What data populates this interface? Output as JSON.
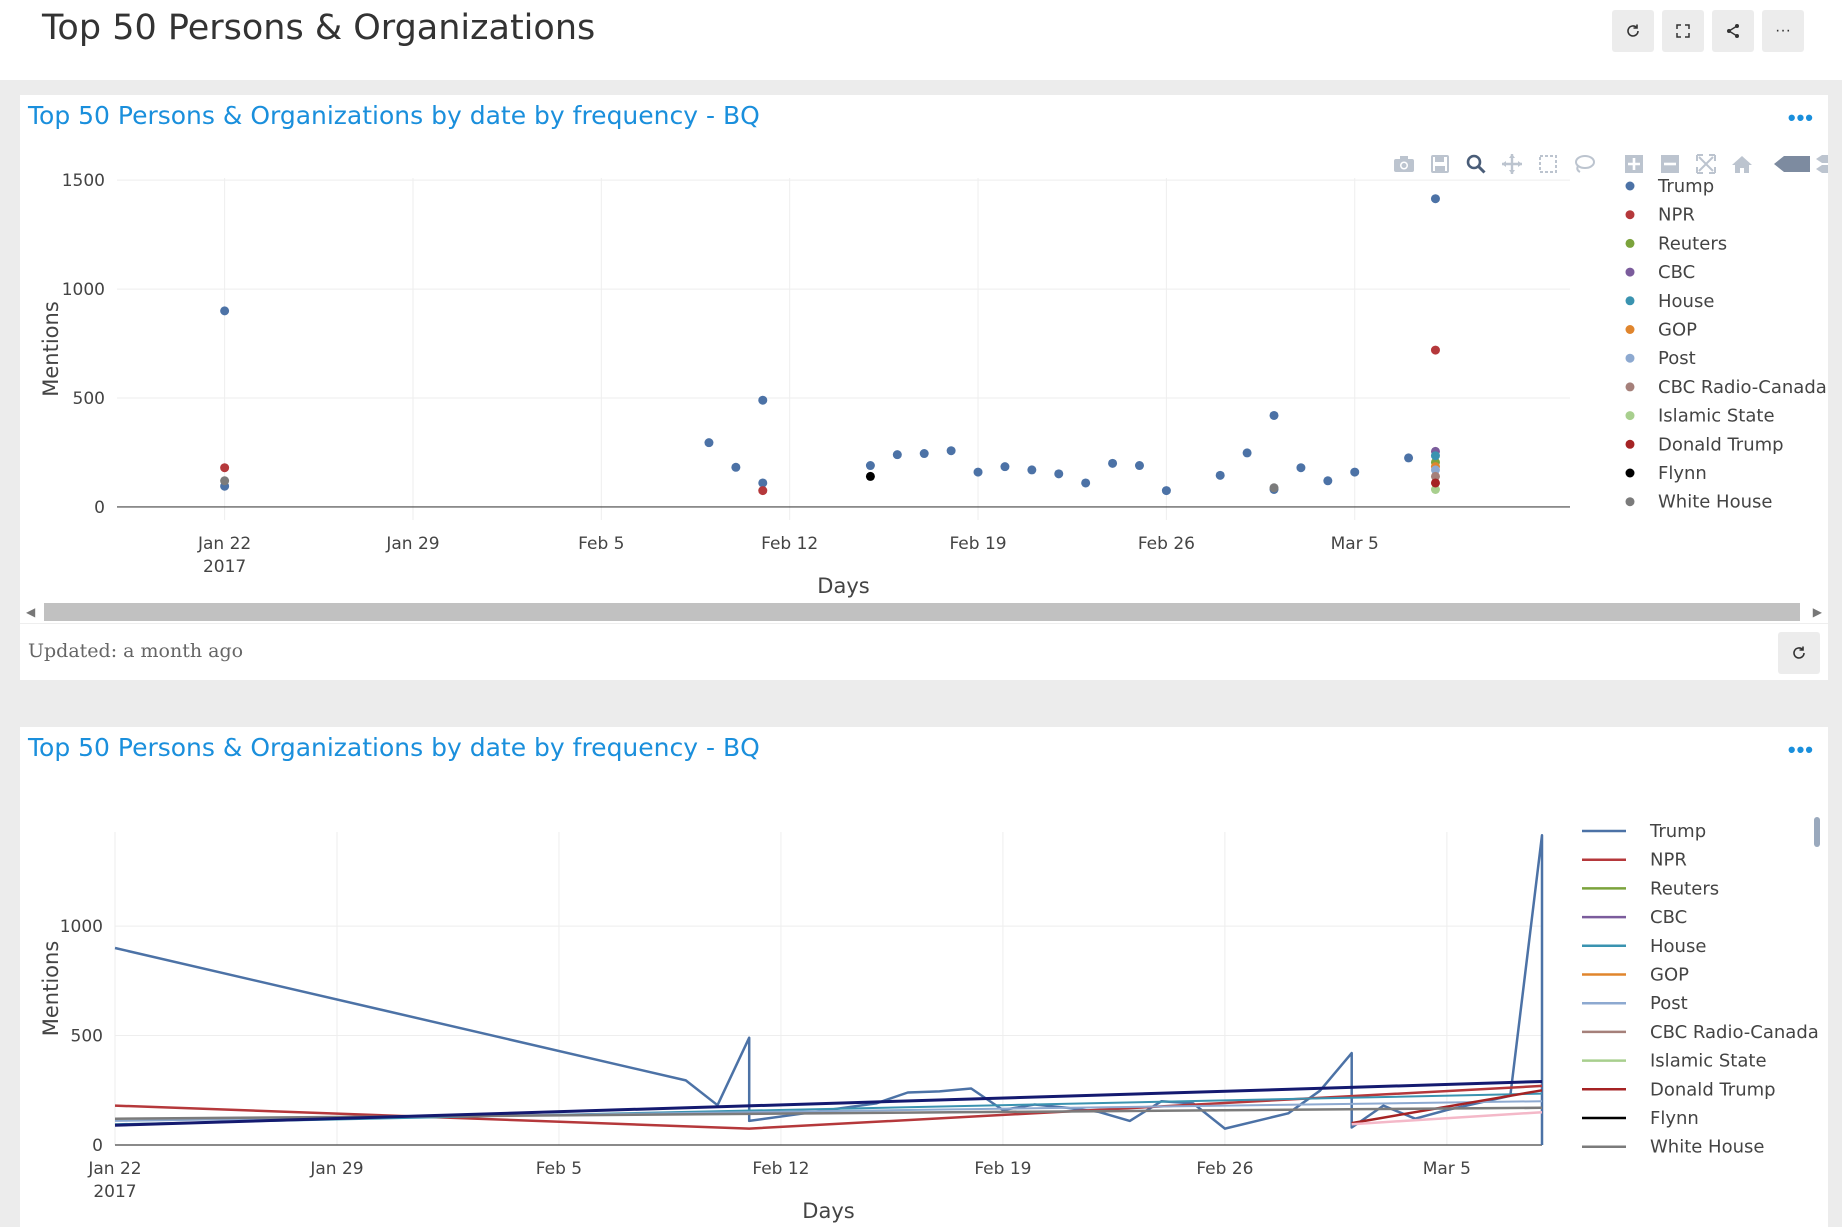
{
  "page": {
    "title": "Top 50 Persons & Organizations"
  },
  "toolbar": {
    "refresh_icon": "refresh-icon",
    "expand_icon": "expand-icon",
    "share_icon": "share-icon",
    "more_label": "···"
  },
  "panel1": {
    "title": "Top 50 Persons & Organizations by date by frequency - BQ",
    "menu_label": "•••",
    "updated_text": "Updated: a month ago"
  },
  "panel2": {
    "title": "Top 50 Persons & Organizations by date by frequency - BQ",
    "menu_label": "•••"
  },
  "chart_data": [
    {
      "type": "scatter",
      "title": "Top 50 Persons & Organizations by date by frequency - BQ",
      "xlabel": "Days",
      "ylabel": "Mentions",
      "xlim": [
        "2017-01-18",
        "2017-03-13"
      ],
      "ylim": [
        -60,
        1510
      ],
      "xticks": [
        {
          "x": "2017-01-22",
          "label": "Jan 22",
          "sub": "2017"
        },
        {
          "x": "2017-01-29",
          "label": "Jan 29"
        },
        {
          "x": "2017-02-05",
          "label": "Feb 5"
        },
        {
          "x": "2017-02-12",
          "label": "Feb 12"
        },
        {
          "x": "2017-02-19",
          "label": "Feb 19"
        },
        {
          "x": "2017-02-26",
          "label": "Feb 26"
        },
        {
          "x": "2017-03-05",
          "label": "Mar 5"
        }
      ],
      "yticks": [
        0,
        500,
        1000,
        1500
      ],
      "grid": true,
      "legend": "right",
      "series": [
        {
          "name": "Trump",
          "color": "#4c72a6",
          "points": [
            [
              "2017-01-22",
              900
            ],
            [
              "2017-01-22",
              95
            ],
            [
              "2017-02-09",
              295
            ],
            [
              "2017-02-10",
              182
            ],
            [
              "2017-02-11",
              490
            ],
            [
              "2017-02-11",
              110
            ],
            [
              "2017-02-15",
              190
            ],
            [
              "2017-02-16",
              240
            ],
            [
              "2017-02-17",
              245
            ],
            [
              "2017-02-18",
              258
            ],
            [
              "2017-02-19",
              160
            ],
            [
              "2017-02-20",
              185
            ],
            [
              "2017-02-21",
              170
            ],
            [
              "2017-02-22",
              152
            ],
            [
              "2017-02-23",
              110
            ],
            [
              "2017-02-24",
              200
            ],
            [
              "2017-02-25",
              190
            ],
            [
              "2017-02-26",
              75
            ],
            [
              "2017-02-28",
              145
            ],
            [
              "2017-03-01",
              248
            ],
            [
              "2017-03-02",
              420
            ],
            [
              "2017-03-02",
              80
            ],
            [
              "2017-03-03",
              180
            ],
            [
              "2017-03-04",
              120
            ],
            [
              "2017-03-05",
              160
            ],
            [
              "2017-03-07",
              225
            ],
            [
              "2017-03-08",
              1415
            ]
          ]
        },
        {
          "name": "NPR",
          "color": "#b5383b",
          "points": [
            [
              "2017-01-22",
              180
            ],
            [
              "2017-02-11",
              75
            ],
            [
              "2017-03-08",
              720
            ]
          ]
        },
        {
          "name": "Reuters",
          "color": "#7ba33c",
          "points": [
            [
              "2017-03-08",
              205
            ]
          ]
        },
        {
          "name": "CBC",
          "color": "#7b5c9c",
          "points": [
            [
              "2017-03-08",
              255
            ]
          ]
        },
        {
          "name": "House",
          "color": "#3a93b0",
          "points": [
            [
              "2017-03-08",
              235
            ]
          ]
        },
        {
          "name": "GOP",
          "color": "#e0852d",
          "points": [
            [
              "2017-03-08",
              185
            ]
          ]
        },
        {
          "name": "Post",
          "color": "#8da9d0",
          "points": [
            [
              "2017-03-08",
              170
            ]
          ]
        },
        {
          "name": "CBC Radio-Canada",
          "color": "#a5807a",
          "points": [
            [
              "2017-03-08",
              140
            ]
          ]
        },
        {
          "name": "Islamic State",
          "color": "#a8cf8e",
          "points": [
            [
              "2017-03-08",
              80
            ]
          ]
        },
        {
          "name": "Donald Trump",
          "color": "#a52324",
          "points": [
            [
              "2017-03-08",
              110
            ]
          ]
        },
        {
          "name": "Flynn",
          "color": "#000000",
          "points": [
            [
              "2017-02-15",
              140
            ]
          ]
        },
        {
          "name": "White House",
          "color": "#7b7b7b",
          "points": [
            [
              "2017-01-22",
              120
            ],
            [
              "2017-03-02",
              88
            ]
          ]
        }
      ]
    },
    {
      "type": "line",
      "title": "Top 50 Persons & Organizations by date by frequency - BQ",
      "xlabel": "Days",
      "ylabel": "Mentions",
      "xlim": [
        "2017-01-22",
        "2017-03-08"
      ],
      "ylim": [
        0,
        1430
      ],
      "xticks": [
        {
          "x": "2017-01-22",
          "label": "Jan 22",
          "sub": "2017"
        },
        {
          "x": "2017-01-29",
          "label": "Jan 29"
        },
        {
          "x": "2017-02-05",
          "label": "Feb 5"
        },
        {
          "x": "2017-02-12",
          "label": "Feb 12"
        },
        {
          "x": "2017-02-19",
          "label": "Feb 19"
        },
        {
          "x": "2017-02-26",
          "label": "Feb 26"
        },
        {
          "x": "2017-03-05",
          "label": "Mar 5"
        }
      ],
      "yticks": [
        0,
        500,
        1000
      ],
      "grid": true,
      "legend": "right",
      "series": [
        {
          "name": "Trump",
          "color": "#4c72a6",
          "width": 2.5,
          "points": [
            [
              "2017-01-22",
              900
            ],
            [
              "2017-02-09",
              295
            ],
            [
              "2017-02-10",
              182
            ],
            [
              "2017-02-11",
              490
            ],
            [
              "2017-02-11",
              110
            ],
            [
              "2017-02-15",
              190
            ],
            [
              "2017-02-16",
              240
            ],
            [
              "2017-02-17",
              245
            ],
            [
              "2017-02-18",
              258
            ],
            [
              "2017-02-19",
              160
            ],
            [
              "2017-02-20",
              185
            ],
            [
              "2017-02-21",
              170
            ],
            [
              "2017-02-22",
              152
            ],
            [
              "2017-02-23",
              110
            ],
            [
              "2017-02-24",
              200
            ],
            [
              "2017-02-25",
              190
            ],
            [
              "2017-02-26",
              75
            ],
            [
              "2017-02-28",
              145
            ],
            [
              "2017-03-01",
              248
            ],
            [
              "2017-03-02",
              420
            ],
            [
              "2017-03-02",
              80
            ],
            [
              "2017-03-03",
              180
            ],
            [
              "2017-03-04",
              120
            ],
            [
              "2017-03-05",
              160
            ],
            [
              "2017-03-07",
              225
            ],
            [
              "2017-03-08",
              1415
            ],
            [
              "2017-03-08",
              0
            ]
          ]
        },
        {
          "name": "NPR",
          "color": "#b5383b",
          "width": 2.5,
          "points": [
            [
              "2017-01-22",
              180
            ],
            [
              "2017-02-11",
              75
            ],
            [
              "2017-03-08",
              270
            ]
          ]
        },
        {
          "name": "Reuters",
          "color": "#7ba33c",
          "width": 2,
          "points": []
        },
        {
          "name": "CBC",
          "color": "#7b5c9c",
          "width": 2,
          "points": []
        },
        {
          "name": "House",
          "color": "#3a93b0",
          "width": 2,
          "points": [
            [
              "2017-01-22",
              95
            ],
            [
              "2017-03-08",
              235
            ]
          ]
        },
        {
          "name": "GOP",
          "color": "#e0852d",
          "width": 2,
          "points": []
        },
        {
          "name": "Post",
          "color": "#8da9d0",
          "width": 2,
          "points": [
            [
              "2017-01-22",
              110
            ],
            [
              "2017-03-08",
              200
            ]
          ]
        },
        {
          "name": "CBC Radio-Canada",
          "color": "#a5807a",
          "width": 2,
          "points": []
        },
        {
          "name": "Islamic State",
          "color": "#a8cf8e",
          "width": 2,
          "points": []
        },
        {
          "name": "Donald Trump",
          "color": "#a52324",
          "width": 2.5,
          "points": [
            [
              "2017-03-02",
              100
            ],
            [
              "2017-03-08",
              250
            ]
          ]
        },
        {
          "name": "Flynn",
          "color": "#000000",
          "width": 2,
          "points": []
        },
        {
          "name": "White House",
          "color": "#7b7b7b",
          "width": 2.5,
          "points": [
            [
              "2017-01-22",
              120
            ],
            [
              "2017-03-08",
              170
            ]
          ]
        },
        {
          "name": "",
          "color": "#141a70",
          "width": 3,
          "points": [
            [
              "2017-01-22",
              90
            ],
            [
              "2017-03-08",
              290
            ]
          ]
        },
        {
          "name": "",
          "color": "#f4b8c8",
          "width": 2.5,
          "points": [
            [
              "2017-03-02",
              95
            ],
            [
              "2017-03-08",
              150
            ]
          ]
        }
      ]
    }
  ]
}
